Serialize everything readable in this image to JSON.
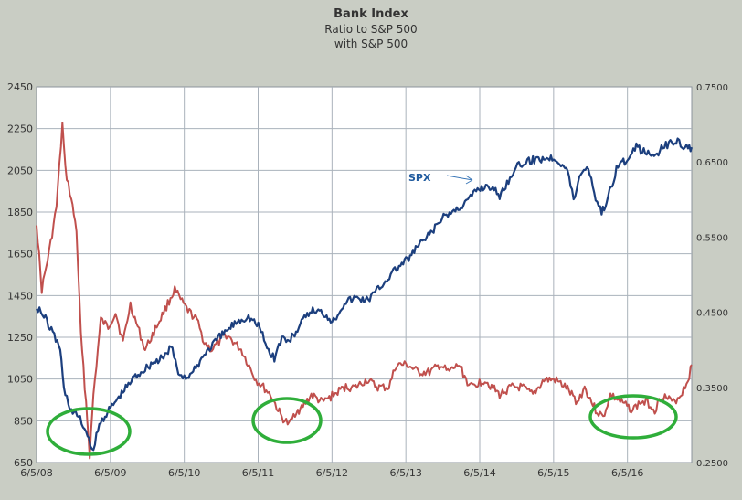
{
  "title": "Bank Index",
  "subtitle_1": "Ratio to S&P 500",
  "subtitle_2": "with S&P 500",
  "colors": {
    "spx": "#1c3f7e",
    "ratio": "#c0504d",
    "circle": "#2fae3a",
    "grid": "#aab2bb",
    "plot_bg": "#ffffff",
    "page_bg": "#c9cdc4"
  },
  "chart_data": {
    "type": "line",
    "title": "Bank Index",
    "subtitle": [
      "Ratio to S&P 500",
      "with S&P 500"
    ],
    "x_tick_labels": [
      "6/5/08",
      "6/5/09",
      "6/5/10",
      "6/5/11",
      "6/5/12",
      "6/5/13",
      "6/5/14",
      "6/5/15",
      "6/5/16"
    ],
    "x_range": [
      2008.43,
      2017.3
    ],
    "y_left": {
      "ticks": [
        650,
        850,
        1050,
        1250,
        1450,
        1650,
        1850,
        2050,
        2250,
        2450
      ],
      "range": [
        650,
        2450
      ]
    },
    "y_right": {
      "ticks": [
        "0.2500",
        "0.3500",
        "0.4500",
        "0.5500",
        "0.6500",
        "0.7500"
      ],
      "range": [
        0.25,
        0.75
      ]
    },
    "grid": true,
    "annotations": [
      {
        "text": "SPX",
        "arrow": true
      }
    ],
    "highlight_circles": 3,
    "series": [
      {
        "axis": "left",
        "color": "#1c3f7e",
        "x": [
          2008.43,
          2008.55,
          2008.65,
          2008.75,
          2008.8,
          2008.9,
          2009.0,
          2009.1,
          2009.18,
          2009.3,
          2009.45,
          2009.6,
          2009.75,
          2009.9,
          2010.0,
          2010.15,
          2010.25,
          2010.35,
          2010.45,
          2010.55,
          2010.7,
          2010.85,
          2011.0,
          2011.15,
          2011.3,
          2011.45,
          2011.55,
          2011.65,
          2011.75,
          2011.85,
          2012.0,
          2012.15,
          2012.3,
          2012.45,
          2012.6,
          2012.75,
          2012.9,
          2013.0,
          2013.15,
          2013.3,
          2013.45,
          2013.6,
          2013.75,
          2013.9,
          2014.0,
          2014.1,
          2014.25,
          2014.4,
          2014.55,
          2014.7,
          2014.8,
          2014.9,
          2015.0,
          2015.15,
          2015.3,
          2015.45,
          2015.55,
          2015.62,
          2015.7,
          2015.8,
          2015.9,
          2016.0,
          2016.08,
          2016.15,
          2016.3,
          2016.45,
          2016.55,
          2016.65,
          2016.75,
          2016.85,
          2016.95,
          2017.05,
          2017.15,
          2017.25,
          2017.3
        ],
        "y": [
          1400,
          1340,
          1270,
          1200,
          1000,
          900,
          870,
          800,
          700,
          850,
          920,
          990,
          1060,
          1100,
          1130,
          1150,
          1210,
          1080,
          1060,
          1080,
          1170,
          1230,
          1280,
          1330,
          1350,
          1300,
          1200,
          1150,
          1250,
          1230,
          1310,
          1380,
          1370,
          1330,
          1420,
          1440,
          1430,
          1460,
          1520,
          1580,
          1620,
          1690,
          1740,
          1810,
          1840,
          1860,
          1900,
          1960,
          1980,
          1930,
          1990,
          2060,
          2080,
          2100,
          2110,
          2110,
          2080,
          2050,
          1910,
          2040,
          2070,
          1920,
          1850,
          1900,
          2080,
          2100,
          2160,
          2140,
          2120,
          2140,
          2170,
          2190,
          2180,
          2150,
          2160
        ]
      },
      {
        "axis": "right",
        "color": "#c0504d",
        "x": [
          2008.43,
          2008.5,
          2008.6,
          2008.7,
          2008.78,
          2008.82,
          2008.9,
          2008.97,
          2009.03,
          2009.1,
          2009.15,
          2009.2,
          2009.3,
          2009.4,
          2009.5,
          2009.6,
          2009.7,
          2009.8,
          2009.9,
          2010.0,
          2010.15,
          2010.3,
          2010.42,
          2010.5,
          2010.6,
          2010.7,
          2010.8,
          2010.9,
          2011.0,
          2011.2,
          2011.4,
          2011.5,
          2011.6,
          2011.7,
          2011.75,
          2011.85,
          2011.95,
          2012.0,
          2012.15,
          2012.3,
          2012.45,
          2012.6,
          2012.75,
          2012.9,
          2013.05,
          2013.2,
          2013.3,
          2013.45,
          2013.6,
          2013.75,
          2013.9,
          2014.0,
          2014.15,
          2014.3,
          2014.5,
          2014.7,
          2014.85,
          2015.0,
          2015.15,
          2015.3,
          2015.45,
          2015.6,
          2015.75,
          2015.85,
          2016.0,
          2016.1,
          2016.2,
          2016.35,
          2016.5,
          2016.6,
          2016.7,
          2016.8,
          2016.9,
          2017.05,
          2017.15,
          2017.25,
          2017.3
        ],
        "y": [
          0.57,
          0.48,
          0.53,
          0.59,
          0.7,
          0.64,
          0.6,
          0.56,
          0.42,
          0.33,
          0.26,
          0.34,
          0.44,
          0.43,
          0.45,
          0.41,
          0.46,
          0.43,
          0.4,
          0.42,
          0.45,
          0.48,
          0.46,
          0.45,
          0.44,
          0.41,
          0.4,
          0.41,
          0.42,
          0.4,
          0.36,
          0.35,
          0.34,
          0.32,
          0.31,
          0.3,
          0.32,
          0.32,
          0.34,
          0.33,
          0.34,
          0.35,
          0.35,
          0.36,
          0.35,
          0.35,
          0.38,
          0.38,
          0.37,
          0.37,
          0.38,
          0.37,
          0.38,
          0.35,
          0.36,
          0.34,
          0.35,
          0.35,
          0.34,
          0.36,
          0.36,
          0.35,
          0.33,
          0.35,
          0.32,
          0.31,
          0.34,
          0.33,
          0.32,
          0.33,
          0.33,
          0.32,
          0.34,
          0.33,
          0.34,
          0.36,
          0.38
        ]
      }
    ]
  }
}
